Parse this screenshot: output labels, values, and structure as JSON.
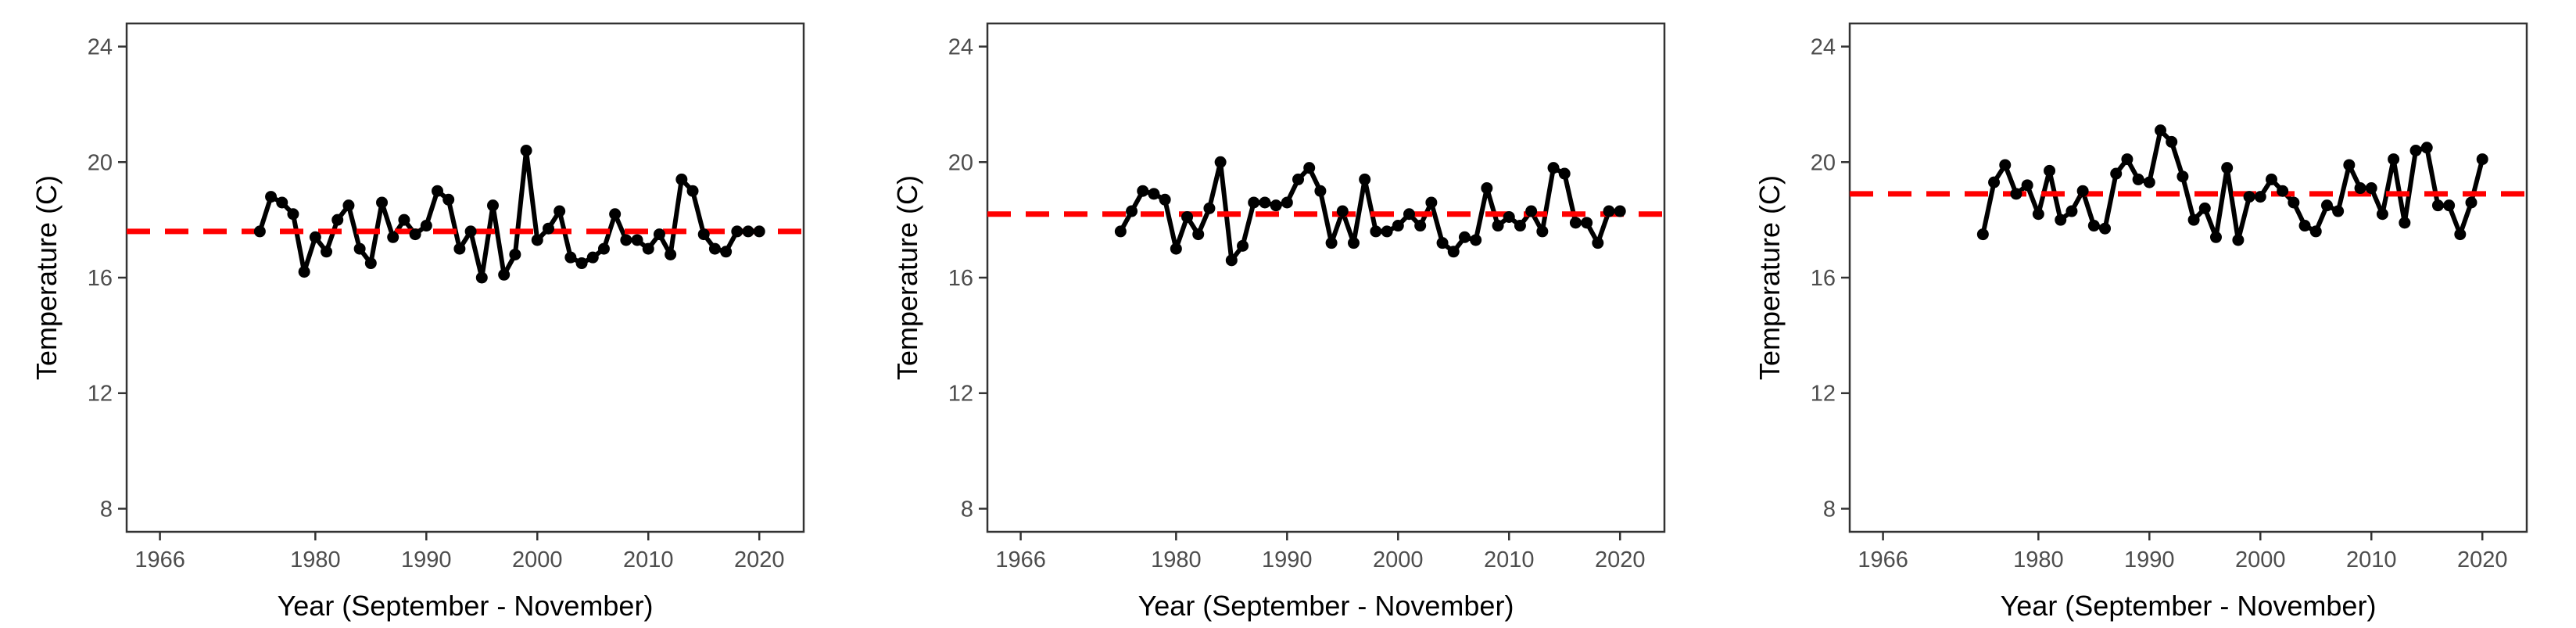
{
  "chart_data": [
    {
      "type": "line",
      "title": "",
      "xlabel": "Year (September - November)",
      "ylabel": "Temperature (C)",
      "xlim": [
        1963,
        2024
      ],
      "ylim": [
        7.2,
        24.8
      ],
      "x_ticks": [
        1966,
        1980,
        1990,
        2000,
        2010,
        2020
      ],
      "y_ticks": [
        8,
        12,
        16,
        20,
        24
      ],
      "grid": false,
      "reference_line": {
        "value": 17.6,
        "color": "#ff0000",
        "style": "dashed"
      },
      "series": [
        {
          "color": "#000000",
          "x": [
            1975,
            1976,
            1977,
            1978,
            1979,
            1980,
            1981,
            1982,
            1983,
            1984,
            1985,
            1986,
            1987,
            1988,
            1989,
            1990,
            1991,
            1992,
            1993,
            1994,
            1995,
            1996,
            1997,
            1998,
            1999,
            2000,
            2001,
            2002,
            2003,
            2004,
            2005,
            2006,
            2007,
            2008,
            2009,
            2010,
            2011,
            2012,
            2013,
            2014,
            2015,
            2016,
            2017,
            2018,
            2019,
            2020
          ],
          "y": [
            17.6,
            18.8,
            18.6,
            18.2,
            16.2,
            17.4,
            16.9,
            18.0,
            18.5,
            17.0,
            16.5,
            18.6,
            17.4,
            18.0,
            17.5,
            17.8,
            19.0,
            18.7,
            17.0,
            17.6,
            16.0,
            18.5,
            16.1,
            16.8,
            20.4,
            17.3,
            17.7,
            18.3,
            16.7,
            16.5,
            16.7,
            17.0,
            18.2,
            17.3,
            17.3,
            17.0,
            17.5,
            16.8,
            19.4,
            19.0,
            17.5,
            17.0,
            16.9,
            17.6,
            17.6,
            17.6
          ]
        }
      ]
    },
    {
      "type": "line",
      "title": "",
      "xlabel": "Year (September - November)",
      "ylabel": "Temperature (C)",
      "xlim": [
        1963,
        2024
      ],
      "ylim": [
        7.2,
        24.8
      ],
      "x_ticks": [
        1966,
        1980,
        1990,
        2000,
        2010,
        2020
      ],
      "y_ticks": [
        8,
        12,
        16,
        20,
        24
      ],
      "grid": false,
      "reference_line": {
        "value": 18.2,
        "color": "#ff0000",
        "style": "dashed"
      },
      "series": [
        {
          "color": "#000000",
          "x": [
            1975,
            1976,
            1977,
            1978,
            1979,
            1980,
            1981,
            1982,
            1983,
            1984,
            1985,
            1986,
            1987,
            1988,
            1989,
            1990,
            1991,
            1992,
            1993,
            1994,
            1995,
            1996,
            1997,
            1998,
            1999,
            2000,
            2001,
            2002,
            2003,
            2004,
            2005,
            2006,
            2007,
            2008,
            2009,
            2010,
            2011,
            2012,
            2013,
            2014,
            2015,
            2016,
            2017,
            2018,
            2019,
            2020
          ],
          "y": [
            17.6,
            18.3,
            19.0,
            18.9,
            18.7,
            17.0,
            18.1,
            17.5,
            18.4,
            20.0,
            16.6,
            17.1,
            18.6,
            18.6,
            18.5,
            18.6,
            19.4,
            19.8,
            19.0,
            17.2,
            18.3,
            17.2,
            19.4,
            17.6,
            17.6,
            17.8,
            18.2,
            17.8,
            18.6,
            17.2,
            16.9,
            17.4,
            17.3,
            19.1,
            17.8,
            18.1,
            17.8,
            18.3,
            17.6,
            19.8,
            19.6,
            17.9,
            17.9,
            17.2,
            18.3,
            18.3
          ]
        }
      ]
    },
    {
      "type": "line",
      "title": "",
      "xlabel": "Year (September - November)",
      "ylabel": "Temperature (C)",
      "xlim": [
        1963,
        2024
      ],
      "ylim": [
        7.2,
        24.8
      ],
      "x_ticks": [
        1966,
        1980,
        1990,
        2000,
        2010,
        2020
      ],
      "y_ticks": [
        8,
        12,
        16,
        20,
        24
      ],
      "grid": false,
      "reference_line": {
        "value": 18.9,
        "color": "#ff0000",
        "style": "dashed"
      },
      "series": [
        {
          "color": "#000000",
          "x": [
            1975,
            1976,
            1977,
            1978,
            1979,
            1980,
            1981,
            1982,
            1983,
            1984,
            1985,
            1986,
            1987,
            1988,
            1989,
            1990,
            1991,
            1992,
            1993,
            1994,
            1995,
            1996,
            1997,
            1998,
            1999,
            2000,
            2001,
            2002,
            2003,
            2004,
            2005,
            2006,
            2007,
            2008,
            2009,
            2010,
            2011,
            2012,
            2013,
            2014,
            2015,
            2016,
            2017,
            2018,
            2019,
            2020
          ],
          "y": [
            17.5,
            19.3,
            19.9,
            18.9,
            19.2,
            18.2,
            19.7,
            18.0,
            18.3,
            19.0,
            17.8,
            17.7,
            19.6,
            20.1,
            19.4,
            19.3,
            21.1,
            20.7,
            19.5,
            18.0,
            18.4,
            17.4,
            19.8,
            17.3,
            18.8,
            18.8,
            19.4,
            19.0,
            18.6,
            17.8,
            17.6,
            18.5,
            18.3,
            19.9,
            19.1,
            19.1,
            18.2,
            20.1,
            17.9,
            20.4,
            20.5,
            18.5,
            18.5,
            17.5,
            18.6,
            20.1
          ]
        }
      ]
    }
  ]
}
